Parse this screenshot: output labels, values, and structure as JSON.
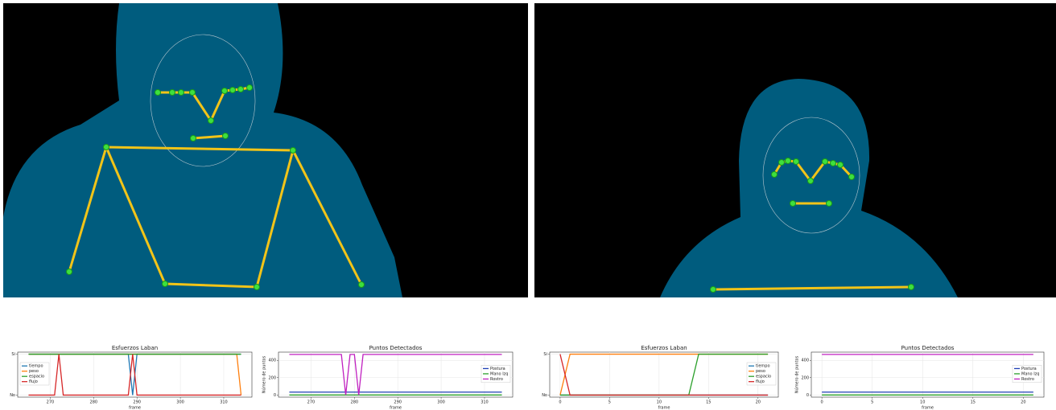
{
  "chart_data": [
    {
      "type": "line",
      "title": "Esfuerzos Laban",
      "x_label": "frame",
      "x": [
        265,
        271,
        272,
        273,
        288,
        289,
        290,
        313,
        314
      ],
      "series": [
        {
          "name": "tiempo",
          "color": "#1f77b4",
          "values": [
            1,
            1,
            1,
            1,
            1,
            0,
            1,
            1,
            1
          ]
        },
        {
          "name": "peso",
          "color": "#ff7f0e",
          "values": [
            1,
            1,
            1,
            1,
            1,
            1,
            1,
            1,
            0
          ]
        },
        {
          "name": "espacio",
          "color": "#2ca02c",
          "values": [
            1,
            1,
            1,
            1,
            1,
            1,
            1,
            1,
            1
          ]
        },
        {
          "name": "flujo",
          "color": "#d62728",
          "values": [
            0,
            0,
            1,
            0,
            0,
            1,
            0,
            0,
            0
          ]
        }
      ],
      "xlim": [
        262.5,
        316.5
      ],
      "xticks": [
        270,
        280,
        290,
        300,
        310
      ],
      "ylim": [
        -0.05,
        1.05
      ],
      "yticks": [
        {
          "value": 0,
          "label": "No"
        },
        {
          "value": 1,
          "label": "Si"
        }
      ],
      "grid": true,
      "legend": "center left"
    },
    {
      "type": "line",
      "title": "Puntos Detectados",
      "x_label": "frame",
      "y_label": "Número de puntos",
      "x": [
        265,
        277,
        278,
        279,
        280,
        281,
        282,
        314
      ],
      "series": [
        {
          "name": "Postura",
          "color": "#1f3fb4",
          "values": [
            33,
            33,
            33,
            33,
            33,
            33,
            33,
            33
          ]
        },
        {
          "name": "Mano Izq",
          "color": "#2ca02c",
          "values": [
            0,
            0,
            0,
            0,
            0,
            0,
            0,
            0
          ]
        },
        {
          "name": "Rostro",
          "color": "#c020c0",
          "values": [
            468,
            468,
            0,
            468,
            468,
            0,
            468,
            468
          ]
        }
      ],
      "xlim": [
        262.5,
        316.5
      ],
      "xticks": [
        270,
        280,
        290,
        300,
        310
      ],
      "ylim": [
        -25,
        495
      ],
      "yticks": [
        0,
        200,
        400
      ],
      "grid": true,
      "legend": "center right"
    },
    {
      "type": "line",
      "title": "Esfuerzos Laban",
      "x_label": "frame",
      "x": [
        0,
        1,
        13,
        14,
        21
      ],
      "series": [
        {
          "name": "tiempo",
          "color": "#1f77b4",
          "values": [
            0,
            0,
            0,
            0,
            0
          ]
        },
        {
          "name": "peso",
          "color": "#ff7f0e",
          "values": [
            0,
            1,
            1,
            1,
            1
          ]
        },
        {
          "name": "espacio",
          "color": "#2ca02c",
          "values": [
            0,
            0,
            0,
            1,
            1
          ]
        },
        {
          "name": "flujo",
          "color": "#d62728",
          "values": [
            1,
            0,
            0,
            0,
            0
          ]
        }
      ],
      "xlim": [
        -1.05,
        22.05
      ],
      "xticks": [
        0,
        5,
        10,
        15,
        20
      ],
      "ylim": [
        -0.05,
        1.05
      ],
      "yticks": [
        {
          "value": 0,
          "label": "No"
        },
        {
          "value": 1,
          "label": "Si"
        }
      ],
      "grid": true,
      "legend": "center right"
    },
    {
      "type": "line",
      "title": "Puntos Detectados",
      "x_label": "frame",
      "y_label": "Número de puntos",
      "x": [
        0,
        21
      ],
      "series": [
        {
          "name": "Postura",
          "color": "#1f3fb4",
          "values": [
            33,
            33
          ]
        },
        {
          "name": "Mano Izq",
          "color": "#2ca02c",
          "values": [
            0,
            0
          ]
        },
        {
          "name": "Rostro",
          "color": "#c020c0",
          "values": [
            468,
            468
          ]
        }
      ],
      "xlim": [
        -1.05,
        22.05
      ],
      "xticks": [
        0,
        5,
        10,
        15,
        20
      ],
      "ylim": [
        -25,
        495
      ],
      "yticks": [
        0,
        200,
        400
      ],
      "grid": true,
      "legend": "center right"
    }
  ]
}
